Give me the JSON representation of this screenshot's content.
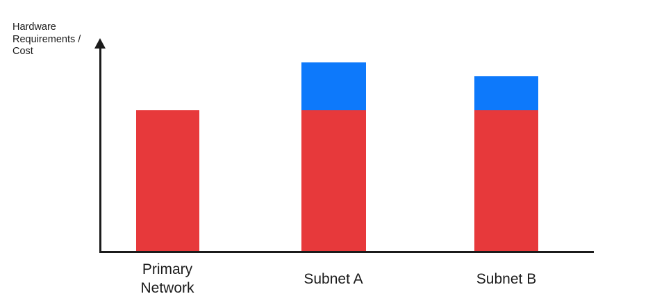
{
  "chart_data": {
    "type": "bar",
    "stacked": true,
    "title": "",
    "xlabel": "",
    "ylabel": "Hardware Requirements / Cost",
    "categories": [
      "Primary Network",
      "Subnet A",
      "Subnet B"
    ],
    "series": [
      {
        "name": "red-segment",
        "color": "#e7393b",
        "values": [
          100,
          100,
          100
        ]
      },
      {
        "name": "blue-segment",
        "color": "#0d79fb",
        "values": [
          0,
          34,
          24
        ]
      }
    ],
    "ylim": [
      0,
      150
    ],
    "axis_numeric_labels": false,
    "grid": false,
    "legend": "none",
    "axis_color": "#1b1b1b",
    "text_color": "#1b1b1b"
  }
}
